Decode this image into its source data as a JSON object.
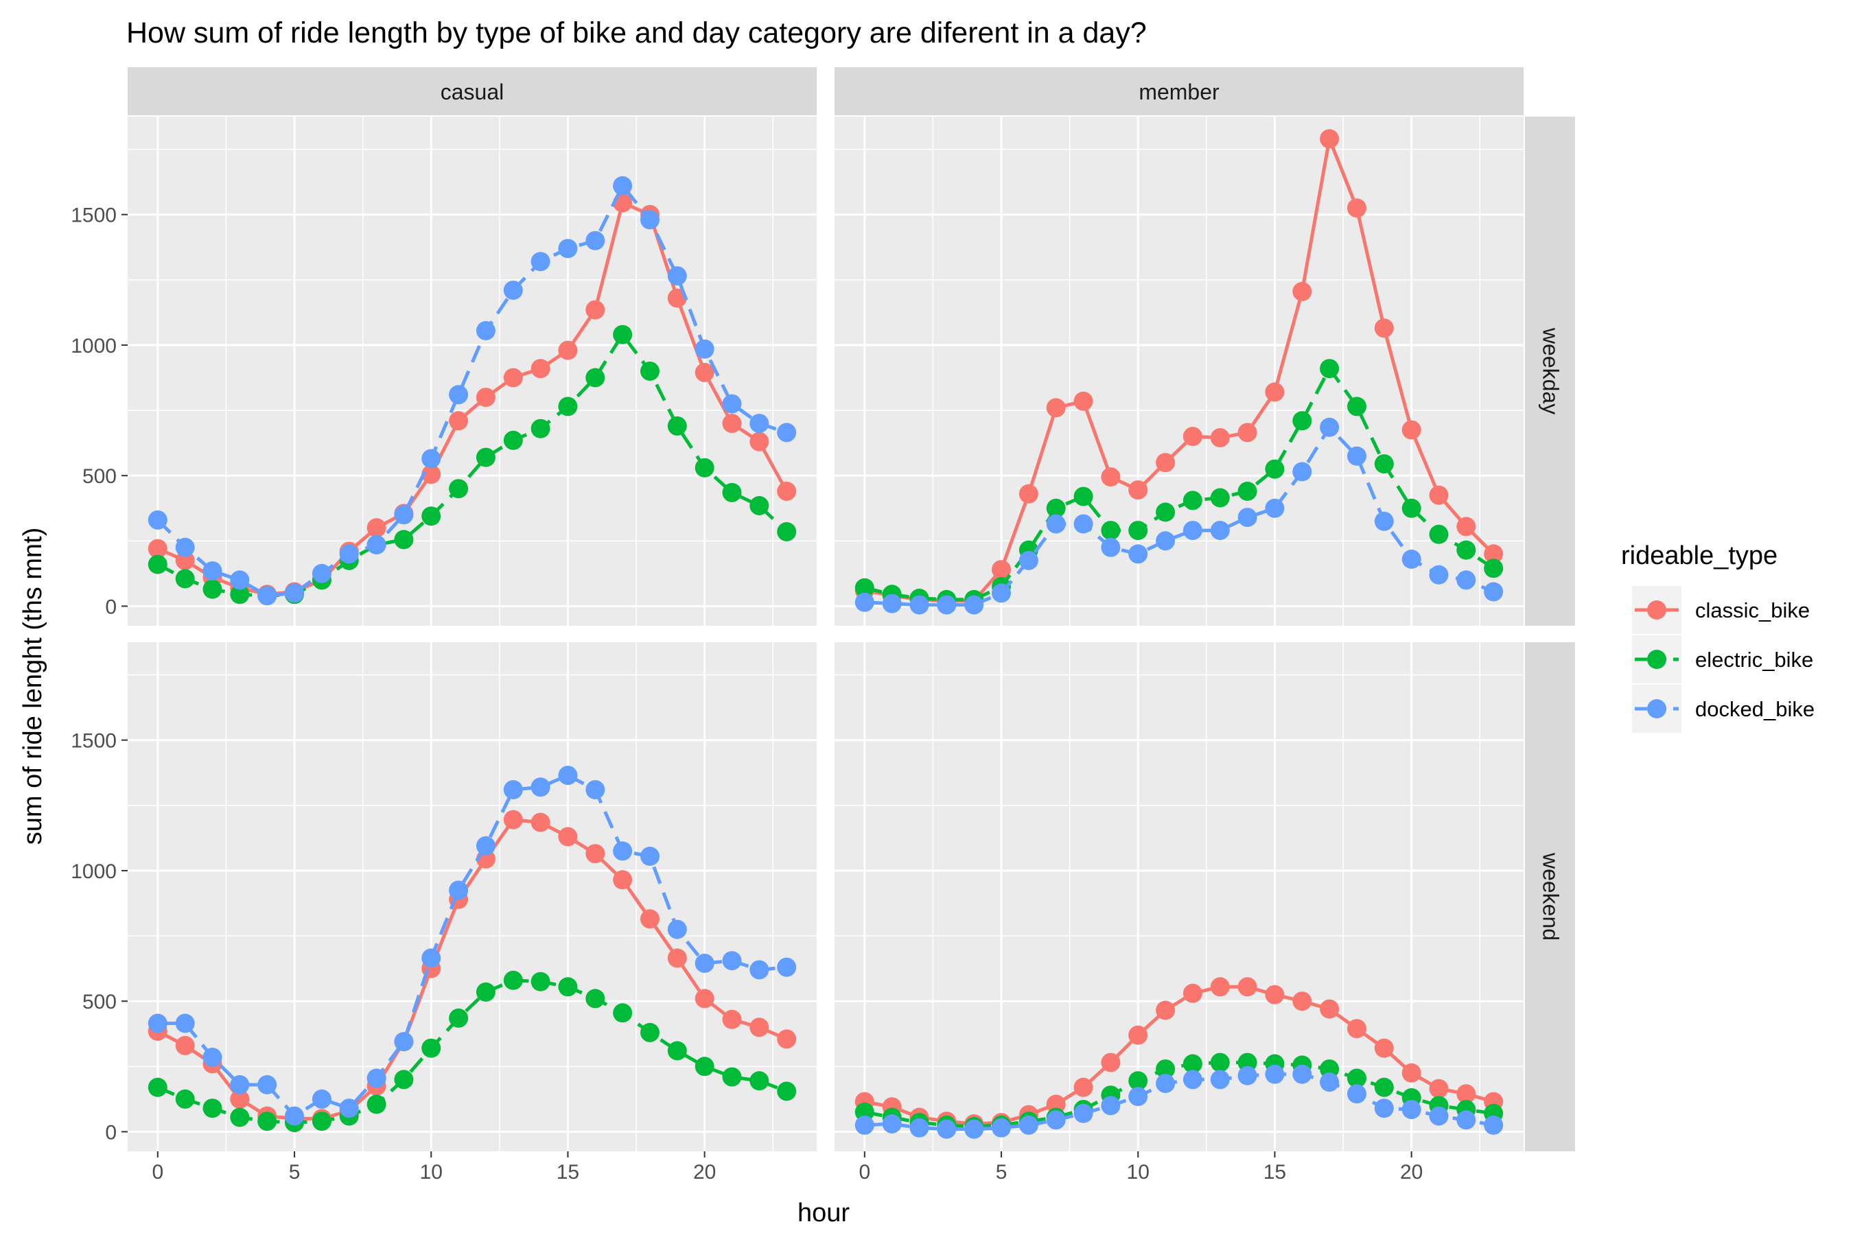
{
  "chart_data": {
    "type": "line",
    "title": "How sum of ride length by type of bike and day category are diferent in a day?",
    "xlabel": "hour",
    "ylabel": "sum of ride lenght (ths mnt)",
    "xlim": [
      -1.1,
      24.1
    ],
    "ylim": [
      -75,
      1875
    ],
    "x_ticks": [
      0,
      5,
      10,
      15,
      20
    ],
    "y_ticks": [
      0,
      500,
      1000,
      1500
    ],
    "grid": true,
    "legend": {
      "title": "rideable_type",
      "position": "right",
      "entries": [
        "classic_bike",
        "electric_bike",
        "docked_bike"
      ]
    },
    "series_styles": [
      {
        "name": "classic_bike",
        "color": "#F8766D",
        "dash": "solid"
      },
      {
        "name": "electric_bike",
        "color": "#00BA38",
        "dash": "dashed"
      },
      {
        "name": "docked_bike",
        "color": "#619CFF",
        "dash": "dashed"
      }
    ],
    "facet_columns": [
      "casual",
      "member"
    ],
    "facet_rows": [
      "weekday",
      "weekend"
    ],
    "x": [
      0,
      1,
      2,
      3,
      4,
      5,
      6,
      7,
      8,
      9,
      10,
      11,
      12,
      13,
      14,
      15,
      16,
      17,
      18,
      19,
      20,
      21,
      22,
      23
    ],
    "panels": [
      {
        "column": "casual",
        "row": "weekday",
        "series": [
          {
            "name": "classic_bike",
            "values": [
              220,
              175,
              110,
              70,
              45,
              55,
              100,
              210,
              300,
              355,
              505,
              710,
              800,
              875,
              910,
              980,
              1135,
              1545,
              1500,
              1180,
              895,
              700,
              630,
              440
            ]
          },
          {
            "name": "electric_bike",
            "values": [
              160,
              105,
              65,
              45,
              40,
              45,
              100,
              175,
              235,
              255,
              345,
              450,
              570,
              635,
              680,
              765,
              875,
              1040,
              900,
              690,
              530,
              435,
              385,
              285
            ]
          },
          {
            "name": "docked_bike",
            "values": [
              330,
              225,
              135,
              100,
              40,
              50,
              125,
              200,
              235,
              350,
              565,
              810,
              1055,
              1210,
              1320,
              1370,
              1400,
              1610,
              1480,
              1265,
              985,
              775,
              700,
              665
            ]
          }
        ]
      },
      {
        "column": "member",
        "row": "weekday",
        "series": [
          {
            "name": "classic_bike",
            "values": [
              60,
              40,
              25,
              20,
              20,
              140,
              430,
              760,
              785,
              495,
              445,
              550,
              650,
              645,
              665,
              820,
              1205,
              1790,
              1525,
              1065,
              675,
              425,
              305,
              200
            ]
          },
          {
            "name": "electric_bike",
            "values": [
              70,
              45,
              30,
              25,
              25,
              75,
              215,
              375,
              420,
              290,
              290,
              360,
              405,
              415,
              440,
              525,
              710,
              910,
              765,
              545,
              375,
              275,
              215,
              145
            ]
          },
          {
            "name": "docked_bike",
            "values": [
              15,
              10,
              5,
              5,
              5,
              50,
              175,
              315,
              315,
              225,
              200,
              250,
              290,
              290,
              340,
              375,
              515,
              685,
              575,
              325,
              180,
              120,
              100,
              55
            ]
          }
        ]
      },
      {
        "column": "casual",
        "row": "weekend",
        "series": [
          {
            "name": "classic_bike",
            "values": [
              385,
              330,
              260,
              125,
              60,
              50,
              50,
              80,
              175,
              345,
              625,
              890,
              1045,
              1195,
              1185,
              1130,
              1065,
              965,
              815,
              665,
              510,
              430,
              400,
              355
            ]
          },
          {
            "name": "electric_bike",
            "values": [
              170,
              125,
              90,
              55,
              40,
              35,
              40,
              60,
              105,
              200,
              320,
              435,
              535,
              580,
              575,
              555,
              510,
              455,
              380,
              310,
              250,
              210,
              195,
              155
            ]
          },
          {
            "name": "docked_bike",
            "values": [
              415,
              415,
              285,
              180,
              180,
              60,
              125,
              90,
              205,
              345,
              665,
              925,
              1095,
              1310,
              1320,
              1365,
              1310,
              1075,
              1055,
              775,
              645,
              655,
              620,
              630
            ]
          }
        ]
      },
      {
        "column": "member",
        "row": "weekend",
        "series": [
          {
            "name": "classic_bike",
            "values": [
              115,
              95,
              55,
              40,
              30,
              35,
              65,
              105,
              170,
              265,
              370,
              465,
              530,
              555,
              555,
              525,
              500,
              470,
              395,
              320,
              225,
              165,
              145,
              115
            ]
          },
          {
            "name": "electric_bike",
            "values": [
              75,
              55,
              35,
              25,
              20,
              25,
              40,
              55,
              85,
              140,
              195,
              240,
              260,
              265,
              265,
              260,
              255,
              240,
              205,
              170,
              130,
              100,
              85,
              70
            ]
          },
          {
            "name": "docked_bike",
            "values": [
              25,
              30,
              15,
              10,
              10,
              15,
              25,
              45,
              70,
              100,
              135,
              185,
              200,
              200,
              215,
              220,
              220,
              190,
              145,
              90,
              85,
              60,
              45,
              25
            ]
          }
        ]
      }
    ]
  }
}
